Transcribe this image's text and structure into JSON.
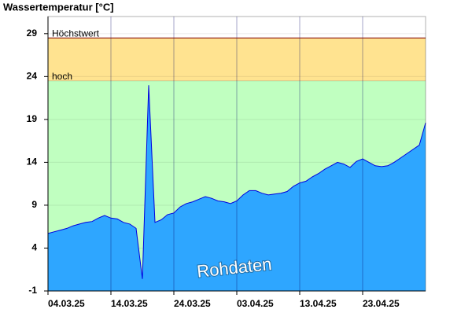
{
  "chart_data": {
    "type": "area",
    "title": "Wassertemperatur [°C]",
    "annotation": "Rohdaten",
    "x": [
      "2025-03-04",
      "2025-03-05",
      "2025-03-06",
      "2025-03-07",
      "2025-03-08",
      "2025-03-09",
      "2025-03-10",
      "2025-03-11",
      "2025-03-12",
      "2025-03-13",
      "2025-03-14",
      "2025-03-15",
      "2025-03-16",
      "2025-03-17",
      "2025-03-18",
      "2025-03-19",
      "2025-03-20",
      "2025-03-21",
      "2025-03-22",
      "2025-03-23",
      "2025-03-24",
      "2025-03-25",
      "2025-03-26",
      "2025-03-27",
      "2025-03-28",
      "2025-03-29",
      "2025-03-30",
      "2025-03-31",
      "2025-04-01",
      "2025-04-02",
      "2025-04-03",
      "2025-04-04",
      "2025-04-05",
      "2025-04-06",
      "2025-04-07",
      "2025-04-08",
      "2025-04-09",
      "2025-04-10",
      "2025-04-11",
      "2025-04-12",
      "2025-04-13",
      "2025-04-14",
      "2025-04-15",
      "2025-04-16",
      "2025-04-17",
      "2025-04-18",
      "2025-04-19",
      "2025-04-20",
      "2025-04-21",
      "2025-04-22",
      "2025-04-23",
      "2025-04-24",
      "2025-04-25",
      "2025-04-26",
      "2025-04-27",
      "2025-04-28",
      "2025-04-29",
      "2025-04-30",
      "2025-05-01",
      "2025-05-02",
      "2025-05-03"
    ],
    "values": [
      5.7,
      5.9,
      6.1,
      6.3,
      6.6,
      6.8,
      7.0,
      7.1,
      7.5,
      7.8,
      7.5,
      7.4,
      7.0,
      6.8,
      6.3,
      0.4,
      23.0,
      7.0,
      7.3,
      7.9,
      8.1,
      8.8,
      9.2,
      9.4,
      9.7,
      10.0,
      9.8,
      9.5,
      9.4,
      9.2,
      9.5,
      10.2,
      10.7,
      10.7,
      10.4,
      10.2,
      10.3,
      10.4,
      10.6,
      11.2,
      11.6,
      11.8,
      12.3,
      12.7,
      13.2,
      13.6,
      14.0,
      13.8,
      13.4,
      14.1,
      14.4,
      14.0,
      13.6,
      13.5,
      13.6,
      14.0,
      14.5,
      15.0,
      15.5,
      16.0,
      18.6
    ],
    "color": "#2ea6ff",
    "line_color": "#0000e0",
    "xlim": [
      "2025-03-04",
      "2025-05-03"
    ],
    "xticks": [
      {
        "value": "2025-03-04",
        "label": "04.03.25"
      },
      {
        "value": "2025-03-14",
        "label": "14.03.25"
      },
      {
        "value": "2025-03-24",
        "label": "24.03.25"
      },
      {
        "value": "2025-04-03",
        "label": "03.04.25"
      },
      {
        "value": "2025-04-13",
        "label": "13.04.25"
      },
      {
        "value": "2025-04-23",
        "label": "23.04.25"
      }
    ],
    "ylim": [
      -1,
      31
    ],
    "yticks": [
      -1,
      4,
      9,
      14,
      19,
      24,
      29
    ],
    "grid": true,
    "thresholds": [
      {
        "label": "hoch",
        "value": 23.5,
        "color": "#c0ffc0"
      },
      {
        "label": "Höchstwert",
        "value": 28.5,
        "color": "#ffe390"
      }
    ]
  }
}
